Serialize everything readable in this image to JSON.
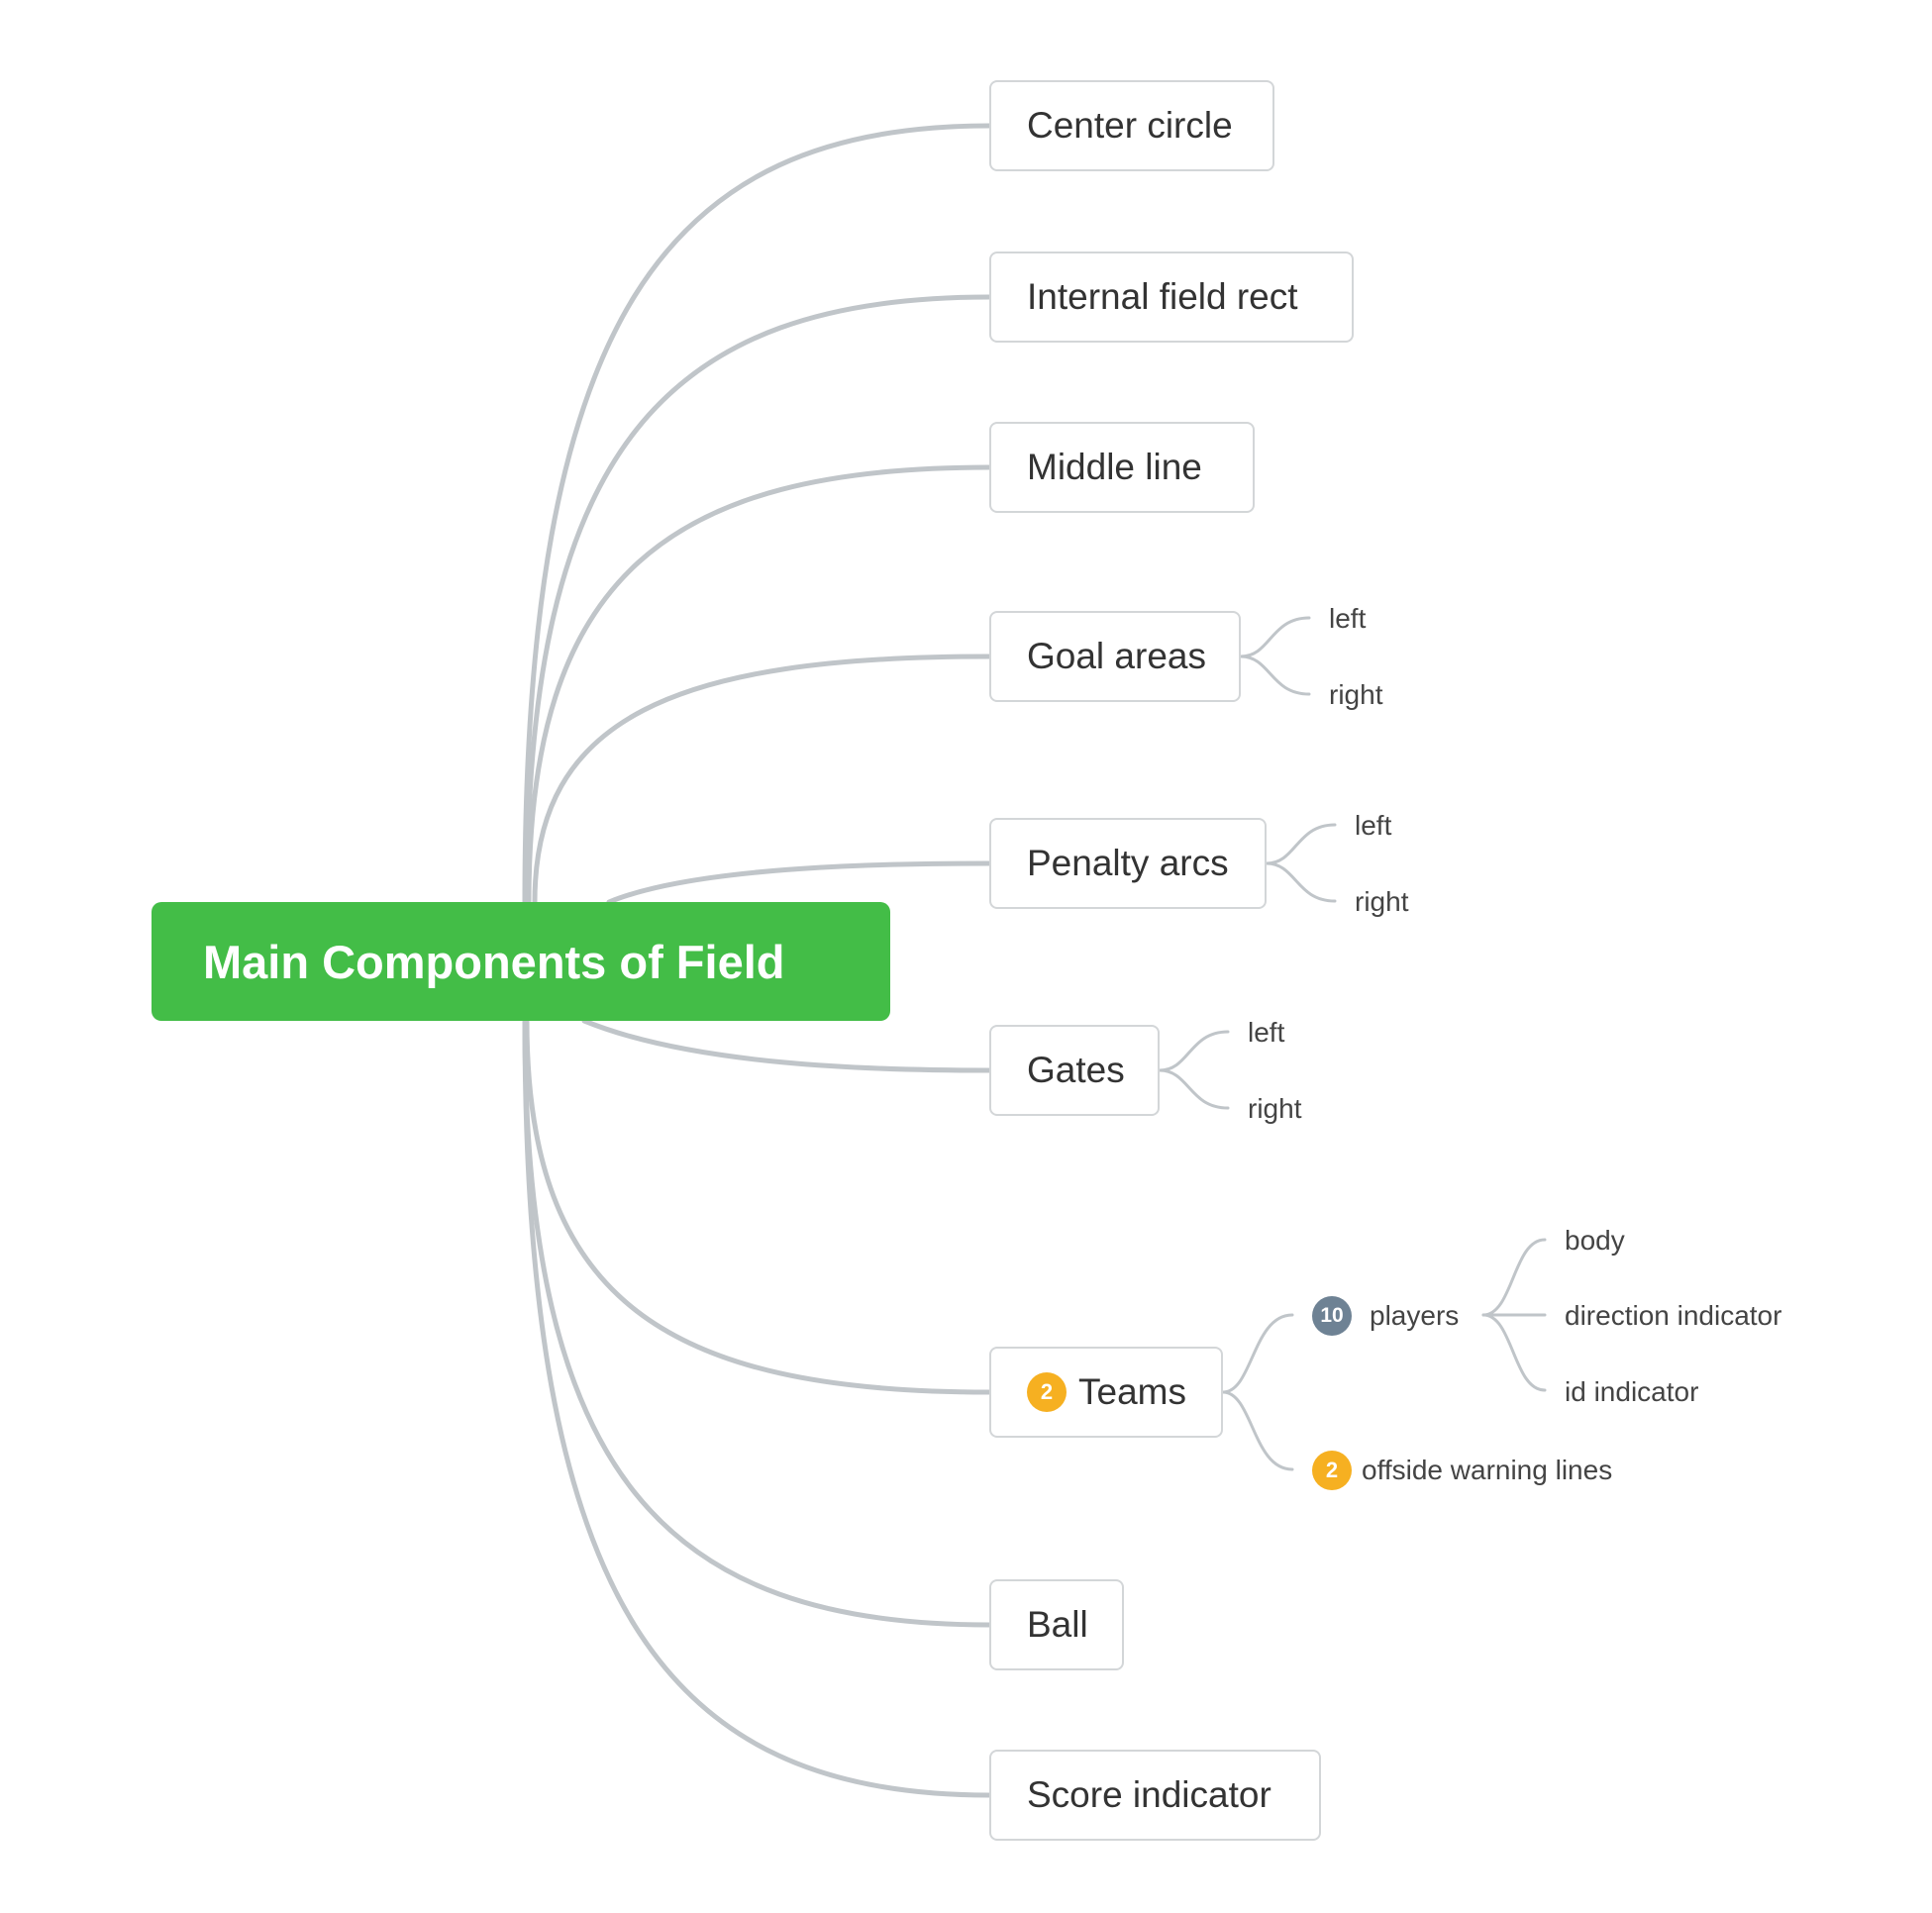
{
  "root": {
    "label": "Main Components of Field"
  },
  "branches": [
    {
      "id": "center-circle",
      "label": "Center circle"
    },
    {
      "id": "internal-field-rect",
      "label": "Internal field rect"
    },
    {
      "id": "middle-line",
      "label": "Middle line"
    },
    {
      "id": "goal-areas",
      "label": "Goal areas",
      "children": [
        "left",
        "right"
      ]
    },
    {
      "id": "penalty-arcs",
      "label": "Penalty arcs",
      "children": [
        "left",
        "right"
      ]
    },
    {
      "id": "gates",
      "label": "Gates",
      "children": [
        "left",
        "right"
      ]
    },
    {
      "id": "teams",
      "label": "Teams",
      "badge": "2",
      "children": [
        {
          "label": "players",
          "badge": "10",
          "children": [
            "body",
            "direction indicator",
            "id indicator"
          ]
        },
        {
          "label": "offside warning lines",
          "badge": "2"
        }
      ]
    },
    {
      "id": "ball",
      "label": "Ball"
    },
    {
      "id": "score-indicator",
      "label": "Score indicator"
    }
  ],
  "colors": {
    "root_fill": "#43bd47",
    "connector": "#c0c5c9",
    "node_border": "#d3d6d8",
    "badge_orange": "#f6b021",
    "badge_gray": "#6e8294"
  }
}
